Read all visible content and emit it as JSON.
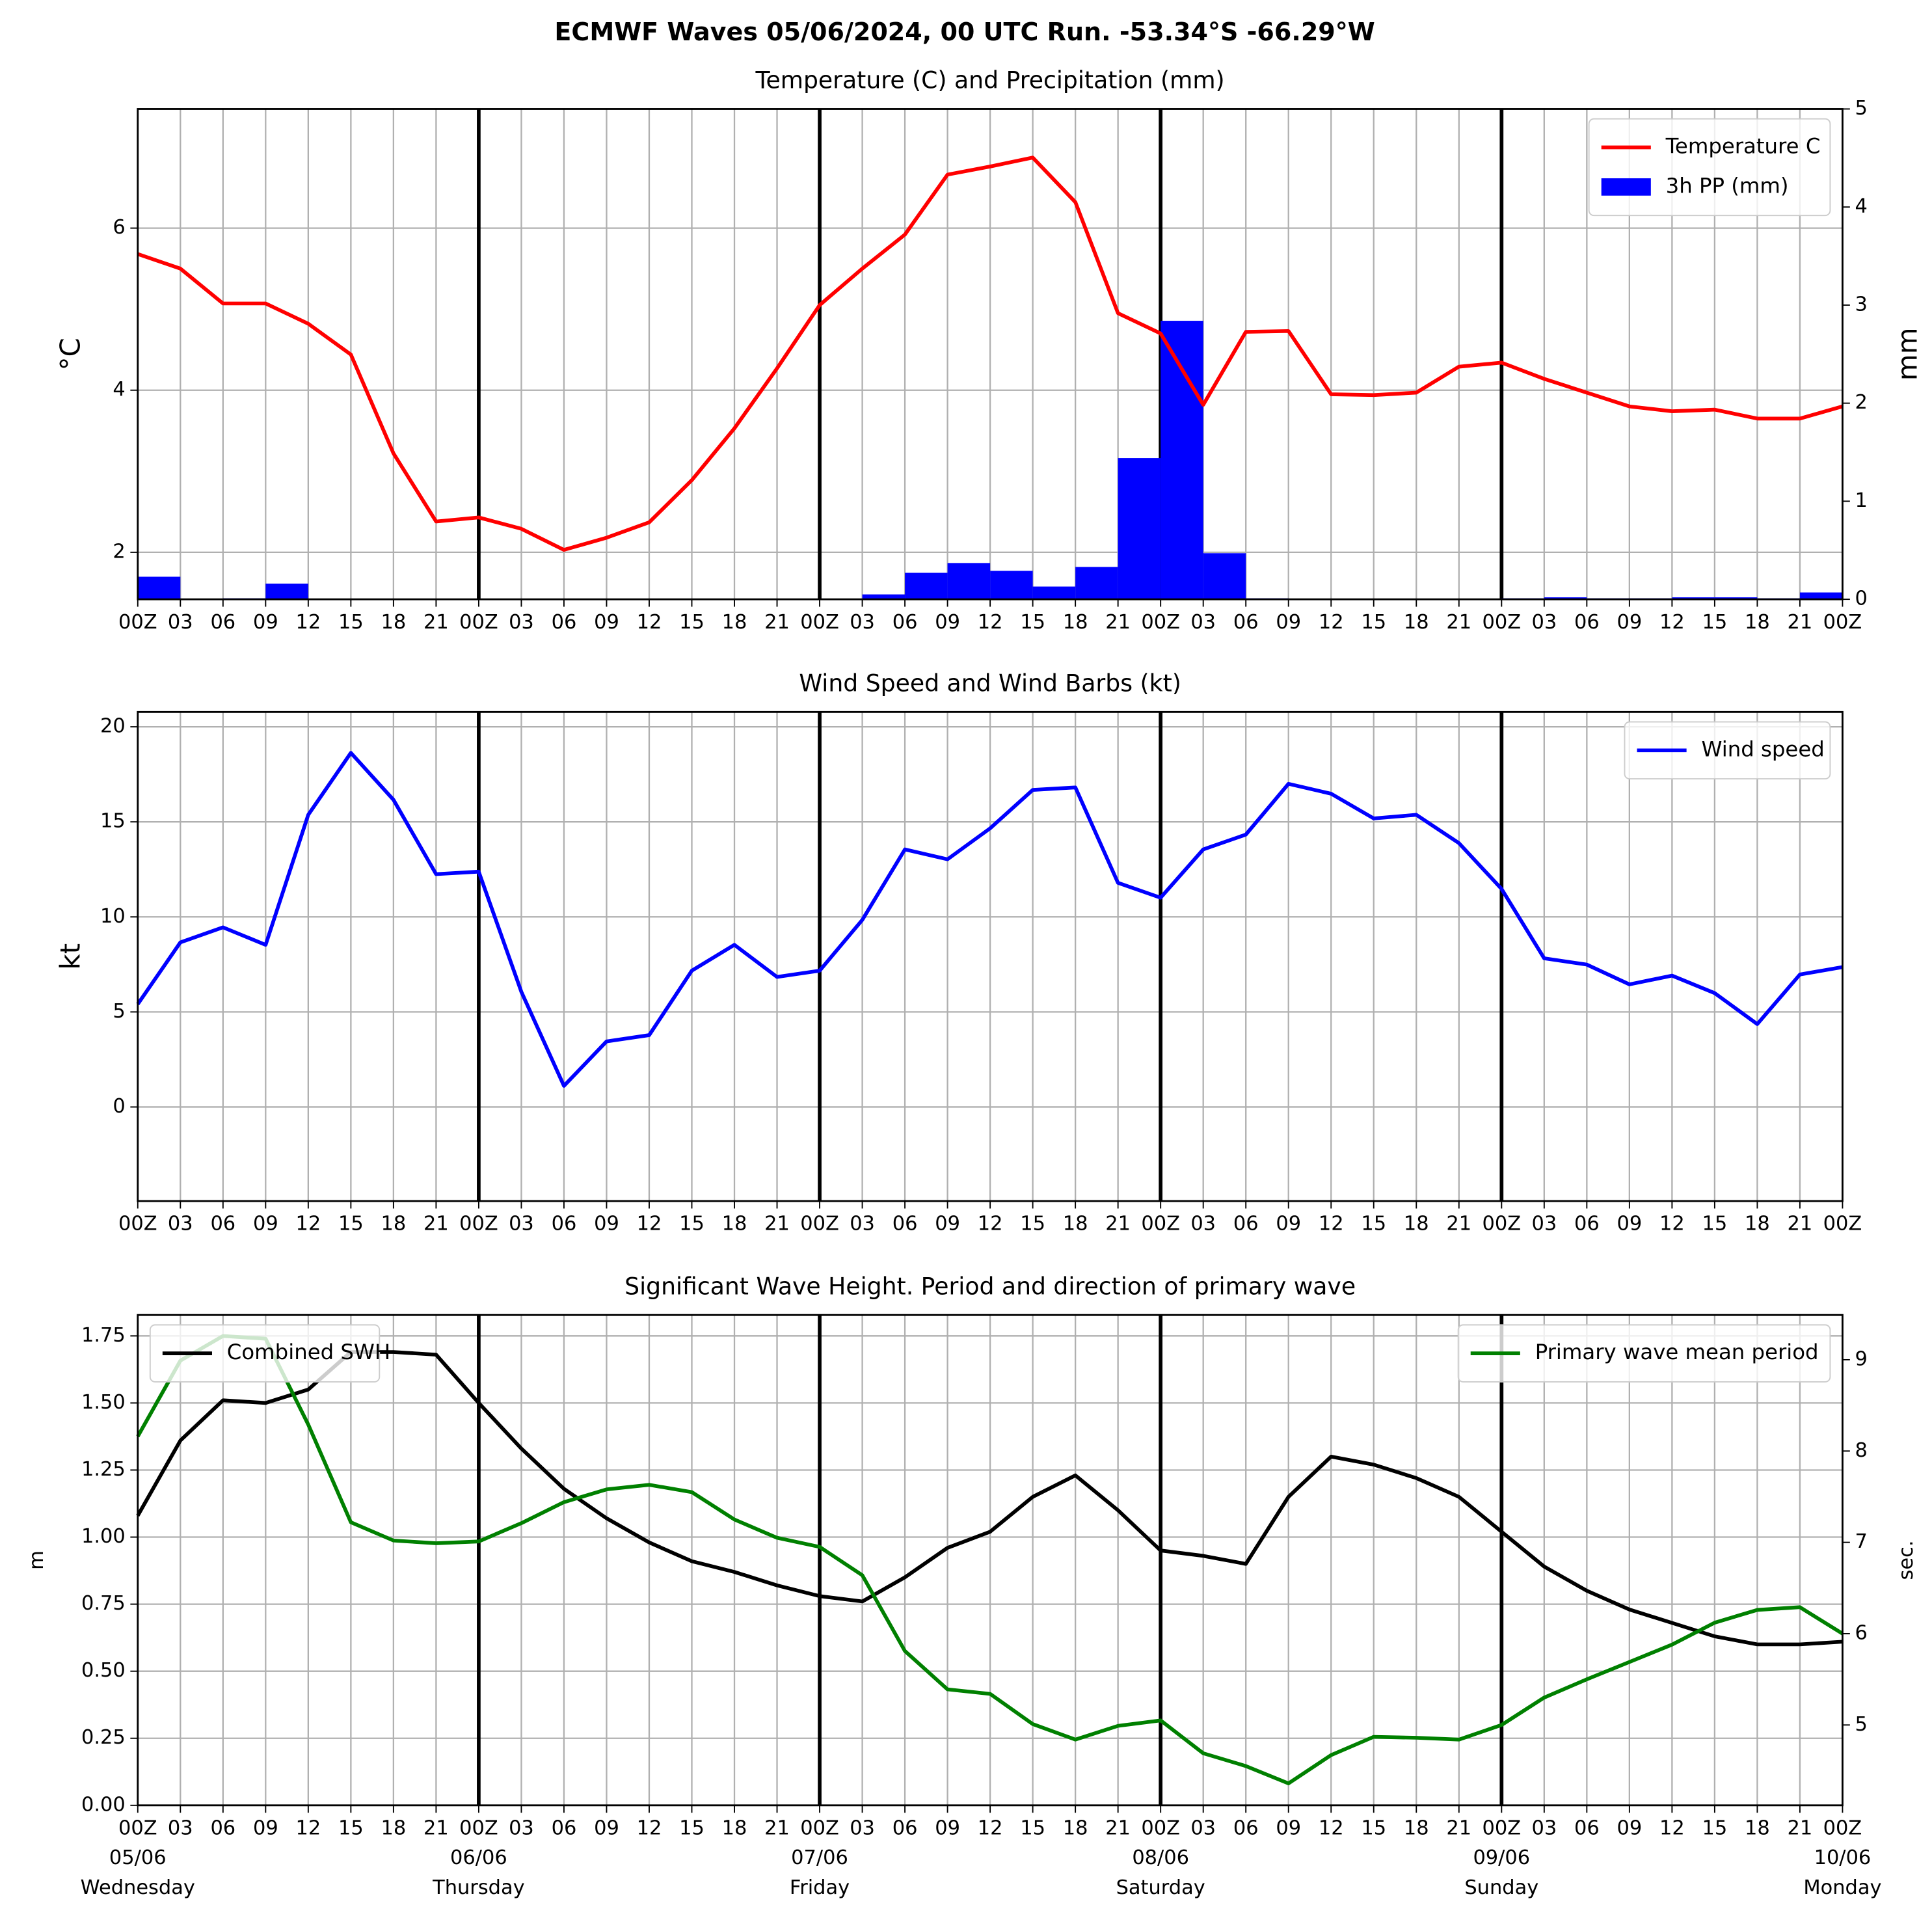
{
  "title": "ECMWF Waves 05/06/2024, 00 UTC Run. -53.34°S -66.29°W",
  "chart_data": [
    {
      "type": "line",
      "title": "Temperature (C) and Precipitation (mm)",
      "ylabel": "°C",
      "y2label": "mm",
      "grid": true,
      "legend": "upper right",
      "categories": [
        "00Z",
        "03",
        "06",
        "09",
        "12",
        "15",
        "18",
        "21",
        "00Z",
        "03",
        "06",
        "09",
        "12",
        "15",
        "18",
        "21",
        "00Z",
        "03",
        "06",
        "09",
        "12",
        "15",
        "18",
        "21",
        "00Z",
        "03",
        "06",
        "09",
        "12",
        "15",
        "18",
        "21",
        "00Z",
        "03",
        "06",
        "09",
        "12",
        "15",
        "18",
        "21",
        "00Z"
      ],
      "ylim": [
        1.42,
        7.47
      ],
      "yticks": [
        2,
        4,
        6
      ],
      "y2lim": [
        0,
        5
      ],
      "y2ticks": [
        0,
        1,
        2,
        3,
        4,
        5
      ],
      "series": [
        {
          "name": "Temperature C",
          "color": "#ff0000",
          "values": [
            5.68,
            5.5,
            5.07,
            5.07,
            4.82,
            4.44,
            3.22,
            2.38,
            2.43,
            2.29,
            2.03,
            2.18,
            2.37,
            2.89,
            3.53,
            4.27,
            5.05,
            5.5,
            5.92,
            6.66,
            6.76,
            6.87,
            6.32,
            4.95,
            4.7,
            3.82,
            4.72,
            4.73,
            3.95,
            3.94,
            3.97,
            4.29,
            4.34,
            4.14,
            3.97,
            3.8,
            3.74,
            3.76,
            3.65,
            3.65,
            3.8
          ]
        },
        {
          "name": "3h PP (mm)",
          "color": "#0000ff",
          "type": "bar",
          "axis": "y2",
          "values": [
            0.23,
            0,
            0.01,
            0.16,
            0,
            0,
            0,
            0,
            0,
            0,
            0,
            0,
            0,
            0,
            0,
            0,
            0,
            0.05,
            0.27,
            0.37,
            0.29,
            0.13,
            0.33,
            1.44,
            2.84,
            0.47,
            0.01,
            0,
            0,
            0,
            0,
            0,
            0.01,
            0.02,
            0.01,
            0.01,
            0.02,
            0.02,
            0.01,
            0.07,
            null
          ]
        }
      ]
    },
    {
      "type": "line",
      "title": "Wind Speed and Wind Barbs (kt)",
      "ylabel": "kt",
      "grid": true,
      "legend": "upper right",
      "categories": [
        "00Z",
        "03",
        "06",
        "09",
        "12",
        "15",
        "18",
        "21",
        "00Z",
        "03",
        "06",
        "09",
        "12",
        "15",
        "18",
        "21",
        "00Z",
        "03",
        "06",
        "09",
        "12",
        "15",
        "18",
        "21",
        "00Z",
        "03",
        "06",
        "09",
        "12",
        "15",
        "18",
        "21",
        "00Z",
        "03",
        "06",
        "09",
        "12",
        "15",
        "18",
        "21",
        "00Z"
      ],
      "ylim": [
        -4.95,
        20.78
      ],
      "yticks": [
        0,
        5,
        10,
        15,
        20
      ],
      "series": [
        {
          "name": "Wind speed",
          "color": "#0000ff",
          "values": [
            5.41,
            8.66,
            9.45,
            8.53,
            15.37,
            18.63,
            16.16,
            12.25,
            12.38,
            6.06,
            1.11,
            3.45,
            3.78,
            7.17,
            8.53,
            6.84,
            7.17,
            9.84,
            13.55,
            13.03,
            14.66,
            16.68,
            16.81,
            11.79,
            11.01,
            13.55,
            14.33,
            17.0,
            16.48,
            15.18,
            15.37,
            13.88,
            11.47,
            7.82,
            7.49,
            6.45,
            6.91,
            5.99,
            4.36,
            6.97,
            7.36
          ]
        }
      ]
    },
    {
      "type": "line",
      "title": "Significant Wave Height. Period and direction of primary wave",
      "ylabel": "m",
      "y2label": "sec.",
      "y2label_color": "#008000",
      "grid": true,
      "categories": [
        "00Z",
        "03",
        "06",
        "09",
        "12",
        "15",
        "18",
        "21",
        "00Z",
        "03",
        "06",
        "09",
        "12",
        "15",
        "18",
        "21",
        "00Z",
        "03",
        "06",
        "09",
        "12",
        "15",
        "18",
        "21",
        "00Z",
        "03",
        "06",
        "09",
        "12",
        "15",
        "18",
        "21",
        "00Z",
        "03",
        "06",
        "09",
        "12",
        "15",
        "18",
        "21",
        "00Z"
      ],
      "day_labels": [
        {
          "date": "05/06",
          "weekday": "Wednesday"
        },
        {
          "date": "06/06",
          "weekday": "Thursday"
        },
        {
          "date": "07/06",
          "weekday": "Friday"
        },
        {
          "date": "08/06",
          "weekday": "Saturday"
        },
        {
          "date": "09/06",
          "weekday": "Sunday"
        },
        {
          "date": "10/06",
          "weekday": "Monday"
        }
      ],
      "ylim": [
        0,
        1.828
      ],
      "yticks": [
        {
          "value": 0,
          "label": "0.00"
        },
        0.25,
        {
          "value": 0.5,
          "label": "0.50"
        },
        0.75,
        {
          "value": 1,
          "label": "1.00"
        },
        1.25,
        {
          "value": 1.5,
          "label": "1.50"
        },
        1.75
      ],
      "y2lim": [
        4.12,
        9.49
      ],
      "y2ticks": [
        5,
        6,
        7,
        8,
        9
      ],
      "series": [
        {
          "name": "Combined SWH",
          "color": "#000000",
          "legend": "upper left",
          "values": [
            1.08,
            1.36,
            1.51,
            1.5,
            1.55,
            1.69,
            1.69,
            1.68,
            1.5,
            1.33,
            1.18,
            1.07,
            0.98,
            0.91,
            0.87,
            0.82,
            0.78,
            0.76,
            0.85,
            0.96,
            1.02,
            1.15,
            1.23,
            1.1,
            0.95,
            0.93,
            0.9,
            1.15,
            1.3,
            1.27,
            1.22,
            1.15,
            1.02,
            0.89,
            0.8,
            0.73,
            0.68,
            0.63,
            0.6,
            0.6,
            0.61
          ]
        },
        {
          "name": "Primary wave mean period",
          "color": "#008000",
          "axis": "y2",
          "legend": "upper right",
          "values": [
            8.16,
            8.99,
            9.26,
            9.23,
            8.29,
            7.22,
            7.02,
            6.99,
            7.01,
            7.21,
            7.44,
            7.58,
            7.63,
            7.55,
            7.25,
            7.05,
            6.95,
            6.64,
            5.81,
            5.39,
            5.34,
            5.01,
            4.84,
            4.99,
            5.05,
            4.69,
            4.55,
            4.36,
            4.67,
            4.87,
            4.86,
            4.84,
            5.0,
            5.3,
            5.5,
            5.69,
            5.88,
            6.12,
            6.26,
            6.29,
            6.0
          ]
        }
      ]
    }
  ]
}
